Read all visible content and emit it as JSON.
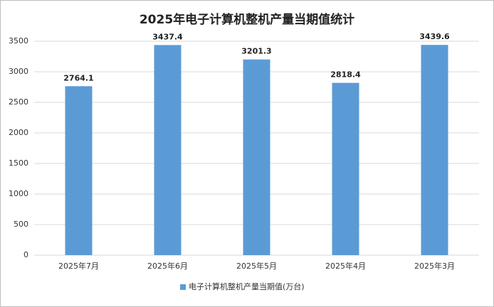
{
  "chart_data": {
    "type": "bar",
    "title": "2025年电子计算机整机产量当期值统计",
    "categories": [
      "2025年7月",
      "2025年6月",
      "2025年5月",
      "2025年4月",
      "2025年3月"
    ],
    "series": [
      {
        "name": "电子计算机整机产量当期值(万台)",
        "color": "#5b9bd5",
        "values": [
          2764.1,
          3437.4,
          3201.3,
          2818.4,
          3439.6
        ]
      }
    ],
    "ylim": [
      0,
      3500
    ],
    "yticks": [
      0,
      500,
      1000,
      1500,
      2000,
      2500,
      3000,
      3500
    ],
    "grid": true,
    "legend": "bottom"
  }
}
